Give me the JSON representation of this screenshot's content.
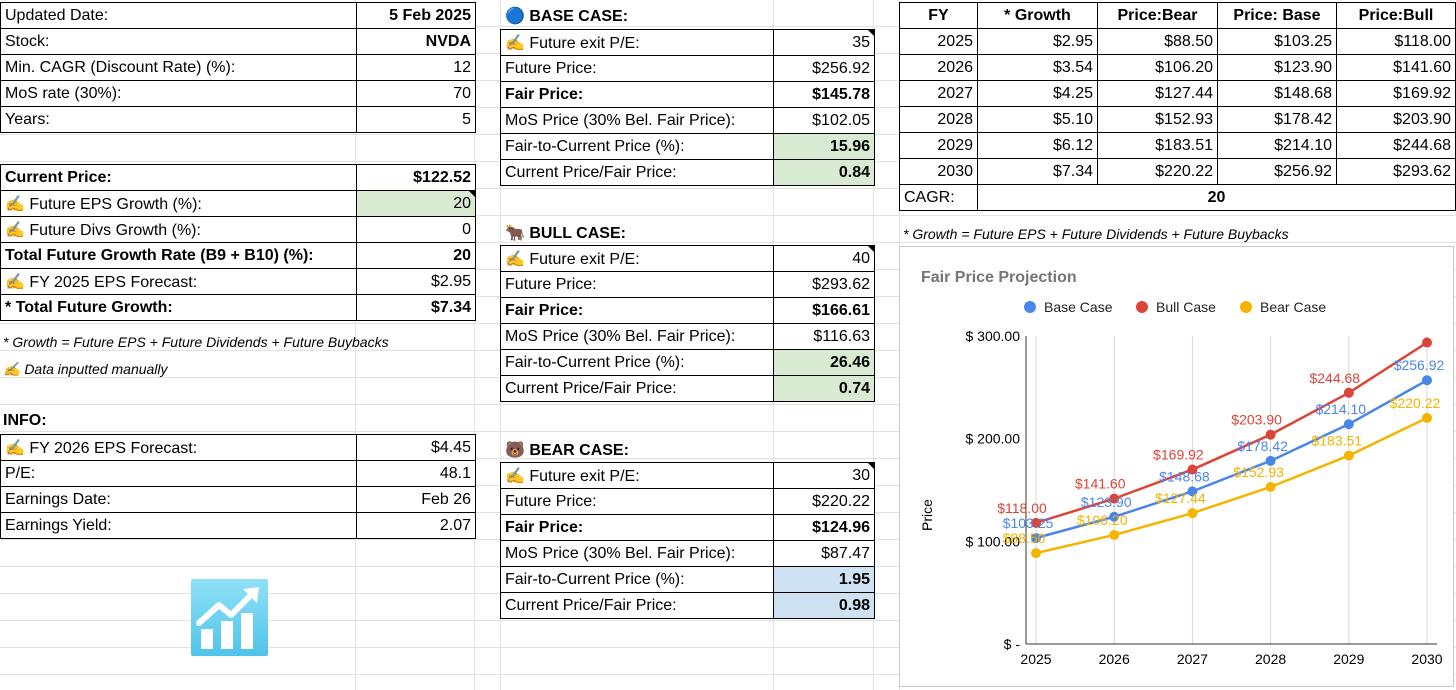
{
  "left": {
    "rows": [
      {
        "label": "Updated Date:",
        "value": "5 Feb 2025",
        "bold_value": true
      },
      {
        "label": "Stock:",
        "value": "NVDA",
        "bold_value": true
      },
      {
        "label": "Min. CAGR (Discount Rate) (%):",
        "value": "12"
      },
      {
        "label": "MoS rate (30%):",
        "value": "70"
      },
      {
        "label": "Years:",
        "value": "5"
      }
    ],
    "rows2": [
      {
        "label": "Current Price:",
        "value": "$122.52",
        "bold": true
      },
      {
        "label": "✍️ Future EPS Growth (%):",
        "value": "20",
        "green": true
      },
      {
        "label": "✍️ Future Divs Growth (%):",
        "value": "0"
      },
      {
        "label": "Total Future Growth Rate (B9 + B10) (%):",
        "value": "20",
        "bold": true
      },
      {
        "label": "✍️ FY 2025 EPS Forecast:",
        "value": "$2.95"
      },
      {
        "label": "* Total Future Growth:",
        "value": "$7.34",
        "bold": true
      }
    ],
    "note1": "* Growth = Future EPS + Future Dividends + Future Buybacks",
    "note2": "✍️ Data inputted manually",
    "info_title": "INFO:",
    "info": [
      {
        "label": "✍️ FY 2026 EPS Forecast:",
        "value": "$4.45"
      },
      {
        "label": "P/E:",
        "value": "48.1"
      },
      {
        "label": "Earnings Date:",
        "value": "Feb 26"
      },
      {
        "label": "Earnings Yield:",
        "value": "2.07"
      }
    ]
  },
  "cases": [
    {
      "title": "🔵 BASE CASE:",
      "rows": [
        {
          "label": "✍️ Future exit P/E:",
          "value": "35"
        },
        {
          "label": "Future Price:",
          "value": "$256.92"
        },
        {
          "label": "Fair Price:",
          "value": "$145.78",
          "bold": true
        },
        {
          "label": "MoS Price (30% Bel. Fair Price):",
          "value": "$102.05"
        },
        {
          "label": "Fair-to-Current Price (%):",
          "value": "15.96",
          "bold_value": true
        },
        {
          "label": "Current Price/Fair Price:",
          "value": "0.84",
          "bold_value": true
        }
      ]
    },
    {
      "title": "🐂 BULL CASE:",
      "rows": [
        {
          "label": "✍️ Future exit P/E:",
          "value": "40"
        },
        {
          "label": "Future Price:",
          "value": "$293.62"
        },
        {
          "label": "Fair Price:",
          "value": "$166.61",
          "bold": true
        },
        {
          "label": "MoS Price (30% Bel. Fair Price):",
          "value": "$116.63"
        },
        {
          "label": "Fair-to-Current Price (%):",
          "value": "26.46",
          "bold_value": true
        },
        {
          "label": "Current Price/Fair Price:",
          "value": "0.74",
          "bold_value": true
        }
      ]
    },
    {
      "title": "🐻 BEAR CASE:",
      "rows": [
        {
          "label": "✍️ Future exit P/E:",
          "value": "30"
        },
        {
          "label": "Future Price:",
          "value": "$220.22"
        },
        {
          "label": "Fair Price:",
          "value": "$124.96",
          "bold": true
        },
        {
          "label": "MoS Price (30% Bel. Fair Price):",
          "value": "$87.47"
        },
        {
          "label": "Fair-to-Current Price (%):",
          "value": "1.95",
          "bold_value": true
        },
        {
          "label": "Current Price/Fair Price:",
          "value": "0.98",
          "bold_value": true
        }
      ]
    }
  ],
  "fy_table": {
    "headers": [
      "FY",
      "* Growth",
      "Price:Bear",
      "Price: Base",
      "Price:Bull"
    ],
    "rows": [
      [
        "2025",
        "$2.95",
        "$88.50",
        "$103.25",
        "$118.00"
      ],
      [
        "2026",
        "$3.54",
        "$106.20",
        "$123.90",
        "$141.60"
      ],
      [
        "2027",
        "$4.25",
        "$127.44",
        "$148.68",
        "$169.92"
      ],
      [
        "2028",
        "$5.10",
        "$152.93",
        "$178.42",
        "$203.90"
      ],
      [
        "2029",
        "$6.12",
        "$183.51",
        "$214.10",
        "$244.68"
      ],
      [
        "2030",
        "$7.34",
        "$220.22",
        "$256.92",
        "$293.62"
      ]
    ],
    "cagr_label": "CAGR:",
    "cagr_value": "20",
    "note": "* Growth = Future EPS + Future Dividends + Future Buybacks"
  },
  "colors": {
    "base": "#4a86e8",
    "bull": "#db4437",
    "bear": "#f4b400",
    "green_cell": "#d9ead3",
    "blue_cell": "#cfe2f3"
  },
  "icons": {
    "case_markers": [
      "blue-circle-icon",
      "bull-icon",
      "bear-icon"
    ],
    "manual": "writing-hand-icon",
    "chart_emoji": "chart-increasing-icon"
  },
  "chart_data": {
    "type": "line",
    "title": "Fair Price Projection",
    "xlabel": "",
    "ylabel": "Price",
    "categories": [
      "2025",
      "2026",
      "2027",
      "2028",
      "2029",
      "2030"
    ],
    "ylim": [
      0,
      300
    ],
    "yticks": [
      "$ -",
      "$ 100.00",
      "$ 200.00",
      "$ 300.00"
    ],
    "legend_position": "top",
    "grid": "vertical",
    "series": [
      {
        "name": "Base Case",
        "color": "#4a86e8",
        "values": [
          103.25,
          123.9,
          148.68,
          178.42,
          214.1,
          256.92
        ],
        "labels": [
          "$103.25",
          "$123.90",
          "$148.68",
          "$178.42",
          "$214.10",
          "$256.92"
        ]
      },
      {
        "name": "Bull Case",
        "color": "#db4437",
        "values": [
          118.0,
          141.6,
          169.92,
          203.9,
          244.68,
          293.62
        ],
        "labels": [
          "$118.00",
          "$141.60",
          "$169.92",
          "$203.90",
          "$244.68",
          ""
        ]
      },
      {
        "name": "Bear Case",
        "color": "#f4b400",
        "values": [
          88.5,
          106.2,
          127.44,
          152.93,
          183.51,
          220.22
        ],
        "labels": [
          "$88.50",
          "$106.20",
          "$127.44",
          "$152.93",
          "$183.51",
          "$220.22"
        ]
      }
    ]
  }
}
